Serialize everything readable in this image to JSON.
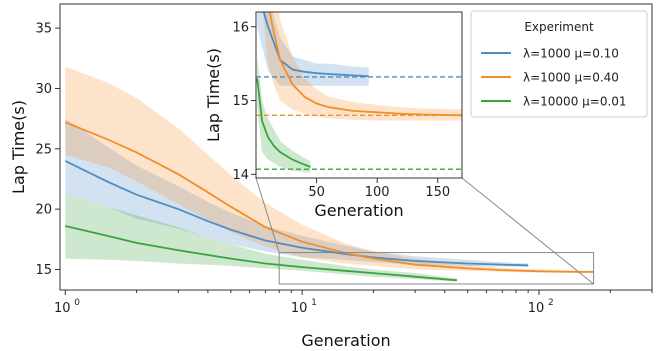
{
  "chart_data": [
    {
      "id": "main",
      "type": "line",
      "title": "",
      "xlabel": "Generation",
      "ylabel": "Lap Time(s)",
      "xscale": "log",
      "xlim": [
        0.95,
        300
      ],
      "ylim": [
        13.3,
        37
      ],
      "xticks": [
        1,
        10,
        100
      ],
      "xtick_labels": [
        "10",
        "10",
        "10"
      ],
      "xtick_exponents": [
        "0",
        "1",
        "2"
      ],
      "yticks": [
        15,
        20,
        25,
        30,
        35
      ],
      "ytick_labels": [
        "15",
        "20",
        "25",
        "30",
        "35"
      ],
      "grid": false,
      "series": [
        {
          "name": "λ=1000 μ=0.10",
          "color": "#4f8dc4",
          "x": [
            1,
            1.5,
            2,
            3,
            4,
            5,
            7,
            10,
            15,
            20,
            30,
            50,
            70,
            90
          ],
          "y": [
            24.0,
            22.3,
            21.2,
            20.0,
            19.0,
            18.3,
            17.4,
            16.8,
            16.3,
            16.0,
            15.7,
            15.5,
            15.4,
            15.35
          ],
          "lower": [
            21.3,
            20.2,
            19.2,
            18.4,
            17.6,
            17.1,
            16.5,
            16.0,
            15.8,
            15.6,
            15.4,
            15.3,
            15.25,
            15.2
          ],
          "upper": [
            27.5,
            25.2,
            23.6,
            21.9,
            20.6,
            19.7,
            18.6,
            17.8,
            17.0,
            16.5,
            16.1,
            15.8,
            15.6,
            15.5
          ]
        },
        {
          "name": "λ=1000 μ=0.40",
          "color": "#f28e2b",
          "x": [
            1,
            1.5,
            2,
            3,
            4,
            5,
            7,
            10,
            15,
            20,
            30,
            50,
            70,
            100,
            150,
            170
          ],
          "y": [
            27.2,
            25.8,
            24.7,
            22.9,
            21.4,
            20.2,
            18.5,
            17.3,
            16.4,
            15.9,
            15.4,
            15.1,
            14.95,
            14.85,
            14.8,
            14.8
          ],
          "lower": [
            24.5,
            23.5,
            22.3,
            20.4,
            19.1,
            18.1,
            16.9,
            16.0,
            15.5,
            15.3,
            15.0,
            14.9,
            14.8,
            14.75,
            14.7,
            14.7
          ],
          "upper": [
            31.8,
            30.5,
            29.2,
            26.7,
            24.5,
            22.8,
            20.5,
            18.7,
            17.2,
            16.5,
            15.9,
            15.4,
            15.15,
            15.0,
            14.9,
            14.9
          ]
        },
        {
          "name": "λ=10000 μ=0.01",
          "color": "#3aa340",
          "x": [
            1,
            1.5,
            2,
            3,
            4,
            5,
            7,
            10,
            15,
            20,
            30,
            45
          ],
          "y": [
            18.6,
            17.8,
            17.2,
            16.6,
            16.2,
            15.9,
            15.5,
            15.2,
            14.9,
            14.7,
            14.4,
            14.1
          ],
          "lower": [
            15.9,
            15.8,
            15.7,
            15.5,
            15.4,
            15.3,
            15.1,
            14.9,
            14.6,
            14.4,
            14.2,
            14.0
          ],
          "upper": [
            21.3,
            20.2,
            19.5,
            18.5,
            17.6,
            17.1,
            16.3,
            15.8,
            15.3,
            15.0,
            14.7,
            14.25
          ]
        }
      ],
      "zoom_box": {
        "x": [
          8,
          170
        ],
        "y": [
          13.8,
          16.4
        ]
      }
    },
    {
      "id": "inset",
      "type": "line",
      "title": "",
      "xlabel": "Generation",
      "ylabel": "Lap Time(s)",
      "xscale": "linear",
      "xlim": [
        0,
        170
      ],
      "ylim": [
        13.95,
        16.2
      ],
      "xticks": [
        50,
        100,
        150
      ],
      "xtick_labels": [
        "50",
        "100",
        "150"
      ],
      "yticks": [
        14,
        15,
        16
      ],
      "ytick_labels": [
        "14",
        "15",
        "16"
      ],
      "grid": false,
      "series": [
        {
          "name": "λ=1000 μ=0.10",
          "color": "#4f8dc4",
          "x": [
            1,
            10,
            20,
            30,
            40,
            50,
            60,
            70,
            80,
            93
          ],
          "y": [
            16.5,
            16.0,
            15.55,
            15.42,
            15.39,
            15.37,
            15.36,
            15.35,
            15.34,
            15.33
          ],
          "lower": [
            16.0,
            15.4,
            15.2,
            15.2,
            15.2,
            15.2,
            15.2,
            15.2,
            15.2,
            15.2
          ],
          "upper": [
            17.0,
            16.4,
            15.85,
            15.6,
            15.55,
            15.5,
            15.5,
            15.48,
            15.46,
            15.45
          ],
          "asymptote": 15.32
        },
        {
          "name": "λ=1000 μ=0.40",
          "color": "#f28e2b",
          "x": [
            5,
            10,
            15,
            20,
            30,
            40,
            50,
            60,
            80,
            100,
            120,
            140,
            170
          ],
          "y": [
            17.0,
            16.3,
            15.9,
            15.55,
            15.22,
            15.05,
            14.96,
            14.91,
            14.86,
            14.84,
            14.82,
            14.81,
            14.8
          ],
          "lower": [
            16.3,
            15.5,
            15.2,
            15.0,
            14.88,
            14.82,
            14.78,
            14.76,
            14.74,
            14.73,
            14.73,
            14.73,
            14.73
          ],
          "upper": [
            17.6,
            17.0,
            16.6,
            16.1,
            15.6,
            15.3,
            15.15,
            15.05,
            14.98,
            14.94,
            14.91,
            14.89,
            14.88
          ],
          "asymptote": 14.8
        },
        {
          "name": "λ=10000 μ=0.01",
          "color": "#3aa340",
          "x": [
            1,
            5,
            10,
            15,
            20,
            30,
            40,
            45
          ],
          "y": [
            15.3,
            14.72,
            14.5,
            14.38,
            14.3,
            14.2,
            14.13,
            14.1
          ],
          "lower": [
            14.9,
            14.3,
            14.2,
            14.15,
            14.1,
            14.05,
            14.03,
            14.02
          ],
          "upper": [
            15.6,
            15.0,
            14.75,
            14.6,
            14.45,
            14.32,
            14.22,
            14.18
          ],
          "asymptote": 14.07
        }
      ]
    }
  ],
  "legend": {
    "title": "Experiment",
    "placement": "top-right",
    "entries": [
      "λ=1000 μ=0.10",
      "λ=1000 μ=0.40",
      "λ=10000 μ=0.01"
    ]
  }
}
